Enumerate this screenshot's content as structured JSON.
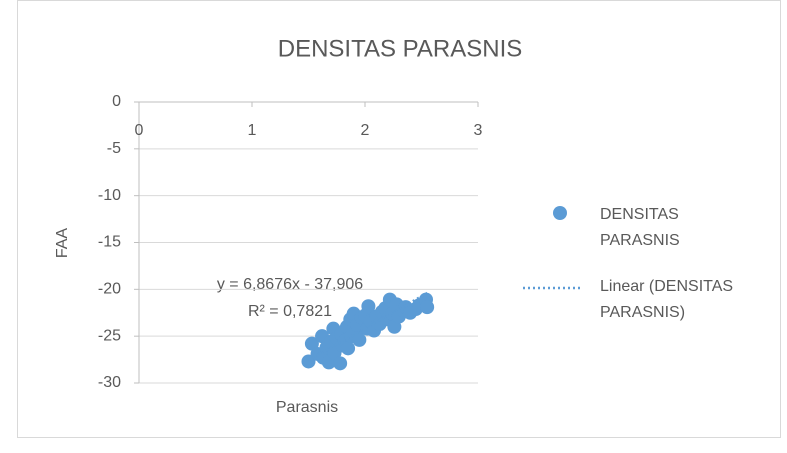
{
  "chart_data": {
    "type": "scatter",
    "title": "DENSITAS PARASNIS",
    "x_label": "Parasnis",
    "y_label": "FAA",
    "xlim": [
      0,
      3
    ],
    "xticks": [
      0,
      1,
      2,
      3
    ],
    "ylim": [
      -30,
      0
    ],
    "yticks": [
      0,
      -5,
      -10,
      -15,
      -20,
      -25,
      -30
    ],
    "grid": true,
    "legend": "right",
    "series": [
      {
        "name": "DENSITAS PARASNIS",
        "color": "#5b9bd5",
        "x": [
          1.5,
          1.53,
          1.58,
          1.62,
          1.63,
          1.66,
          1.68,
          1.7,
          1.72,
          1.73,
          1.75,
          1.78,
          1.79,
          1.8,
          1.82,
          1.84,
          1.85,
          1.87,
          1.88,
          1.9,
          1.92,
          1.93,
          1.95,
          1.97,
          2.0,
          2.02,
          2.03,
          2.05,
          2.08,
          2.1,
          2.13,
          2.15,
          2.18,
          2.2,
          2.22,
          2.24,
          2.26,
          2.28,
          2.3,
          2.33,
          2.36,
          2.4,
          2.45,
          2.48,
          2.54,
          2.55
        ],
        "values": [
          -27.7,
          -25.8,
          -26.9,
          -25.0,
          -27.3,
          -26.2,
          -27.8,
          -25.6,
          -24.2,
          -26.8,
          -25.2,
          -27.9,
          -24.8,
          -26.0,
          -25.5,
          -24.0,
          -26.3,
          -23.2,
          -25.0,
          -22.6,
          -24.5,
          -23.8,
          -25.4,
          -23.0,
          -22.8,
          -24.2,
          -21.8,
          -23.4,
          -24.4,
          -22.9,
          -23.7,
          -22.4,
          -22.0,
          -23.2,
          -21.1,
          -22.6,
          -24.0,
          -21.6,
          -22.9,
          -22.2,
          -21.9,
          -22.5,
          -22.1,
          -21.7,
          -21.1,
          -21.9
        ]
      }
    ],
    "trendline": {
      "name": "Linear (DENSITAS PARASNIS)",
      "slope": 6.8676,
      "intercept": -37.906,
      "equation": "y = 6,8676x - 37,906",
      "r2": "R² = 0,7821"
    }
  }
}
